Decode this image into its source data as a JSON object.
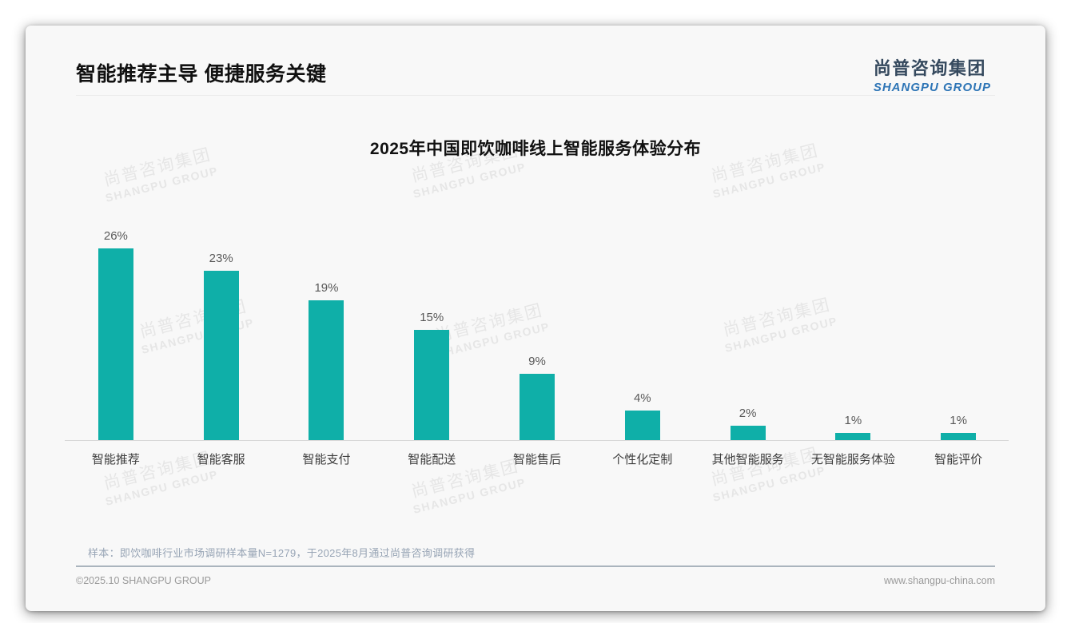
{
  "page": {
    "title": "智能推荐主导 便捷服务关键",
    "logo": {
      "cn": "尚普咨询集团",
      "en": "SHANGPU GROUP"
    },
    "watermark": {
      "line1": "尚普咨询集团",
      "line2": "SHANGPU GROUP"
    },
    "note": "样本：即饮咖啡行业市场调研样本量N=1279，于2025年8月通过尚普咨询调研获得",
    "footer": {
      "copyright": "©2025.10 SHANGPU GROUP",
      "website": "www.shangpu-china.com"
    }
  },
  "colors": {
    "bar": "#0fafa8",
    "logo_cn": "#35495e",
    "logo_en": "#2e75b6",
    "note_text": "#97a4b5",
    "card_bg": "#f8f8f8"
  },
  "chart_data": {
    "type": "bar",
    "title": "2025年中国即饮咖啡线上智能服务体验分布",
    "categories": [
      "智能推荐",
      "智能客服",
      "智能支付",
      "智能配送",
      "智能售后",
      "个性化定制",
      "其他智能服务",
      "无智能服务体验",
      "智能评价"
    ],
    "values": [
      26,
      23,
      19,
      15,
      9,
      4,
      2,
      1,
      1
    ],
    "value_labels": [
      "26%",
      "23%",
      "19%",
      "15%",
      "9%",
      "4%",
      "2%",
      "1%",
      "1%"
    ],
    "unit": "%",
    "xlabel": "",
    "ylabel": "",
    "ylim": [
      0,
      26
    ],
    "grid": false,
    "legend": null,
    "bar_color": "#0fafa8"
  }
}
